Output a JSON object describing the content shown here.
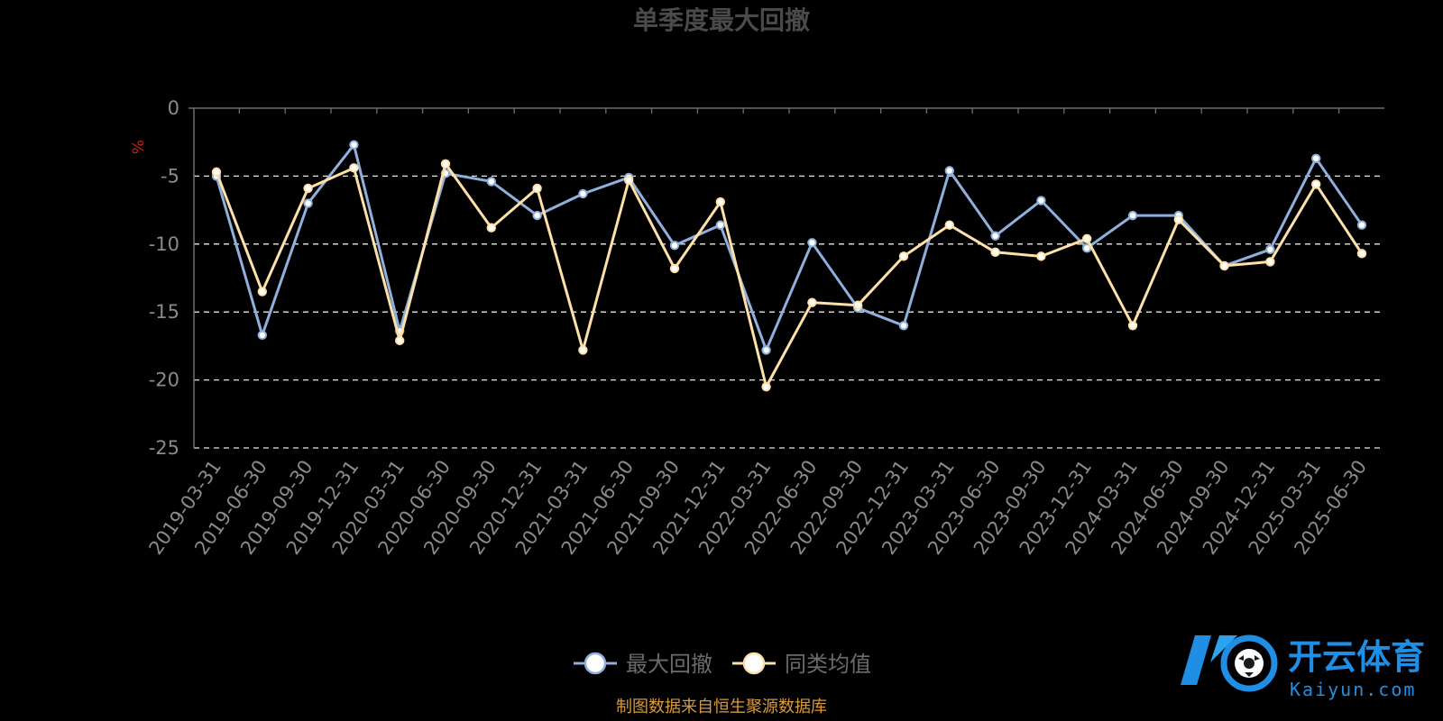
{
  "chart_data": {
    "type": "line",
    "title": "单季度最大回撤",
    "ylabel": "%",
    "ylim": [
      -25,
      0
    ],
    "yticks": [
      0,
      -5,
      -10,
      -15,
      -20,
      -25
    ],
    "grid": true,
    "legend_position": "bottom-center",
    "categories": [
      "2019-03-31",
      "2019-06-30",
      "2019-09-30",
      "2019-12-31",
      "2020-03-31",
      "2020-06-30",
      "2020-09-30",
      "2020-12-31",
      "2021-03-31",
      "2021-06-30",
      "2021-09-30",
      "2021-12-31",
      "2022-03-31",
      "2022-06-30",
      "2022-09-30",
      "2022-12-31",
      "2023-03-31",
      "2023-06-30",
      "2023-09-30",
      "2023-12-31",
      "2024-03-31",
      "2024-06-30",
      "2024-09-30",
      "2024-12-31",
      "2025-03-31",
      "2025-06-30"
    ],
    "series": [
      {
        "name": "最大回撤",
        "color": "#8fb0dc",
        "values": [
          -5.0,
          -16.7,
          -7.0,
          -2.7,
          -16.4,
          -4.8,
          -5.4,
          -7.9,
          -6.3,
          -5.1,
          -10.1,
          -8.6,
          -17.8,
          -9.9,
          -14.7,
          -16.0,
          -4.6,
          -9.4,
          -6.8,
          -10.3,
          -7.9,
          -7.9,
          -11.6,
          -10.4,
          -3.7,
          -8.6
        ]
      },
      {
        "name": "同类均值",
        "color": "#ffe0a8",
        "values": [
          -4.7,
          -13.5,
          -5.9,
          -4.4,
          -17.1,
          -4.1,
          -8.8,
          -5.9,
          -17.8,
          -5.3,
          -11.8,
          -6.9,
          -20.5,
          -14.3,
          -14.5,
          -10.9,
          -8.6,
          -10.6,
          -10.9,
          -9.6,
          -16.0,
          -8.2,
          -11.6,
          -11.3,
          -5.6,
          -10.7
        ]
      }
    ]
  },
  "source_note": "制图数据来自恒生聚源数据库",
  "watermark": {
    "cn": "开云体育",
    "en": "Kaiyun.com",
    "color": "#1f8fe6"
  },
  "colors": {
    "background": "#000000",
    "axis": "#6e6e6e",
    "grid": "#e6e6e6",
    "title": "#4a4a4a",
    "source": "#d99a3a"
  }
}
